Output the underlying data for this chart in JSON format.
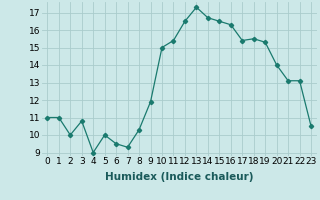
{
  "x": [
    0,
    1,
    2,
    3,
    4,
    5,
    6,
    7,
    8,
    9,
    10,
    11,
    12,
    13,
    14,
    15,
    16,
    17,
    18,
    19,
    20,
    21,
    22,
    23
  ],
  "y": [
    11,
    11,
    10,
    10.8,
    9,
    10,
    9.5,
    9.3,
    10.3,
    11.9,
    15,
    15.4,
    16.5,
    17.3,
    16.7,
    16.5,
    16.3,
    15.4,
    15.5,
    15.3,
    14,
    13.1,
    13.1,
    10.5
  ],
  "line_color": "#1a7a6e",
  "marker": "D",
  "marker_size": 2.2,
  "bg_color": "#cce8e8",
  "grid_color": "#aacccc",
  "xlabel": "Humidex (Indice chaleur)",
  "xlabel_fontsize": 7.5,
  "tick_fontsize": 6.5,
  "ylim": [
    8.8,
    17.6
  ],
  "xlim": [
    -0.5,
    23.5
  ],
  "yticks": [
    9,
    10,
    11,
    12,
    13,
    14,
    15,
    16,
    17
  ],
  "xticks": [
    0,
    1,
    2,
    3,
    4,
    5,
    6,
    7,
    8,
    9,
    10,
    11,
    12,
    13,
    14,
    15,
    16,
    17,
    18,
    19,
    20,
    21,
    22,
    23
  ]
}
